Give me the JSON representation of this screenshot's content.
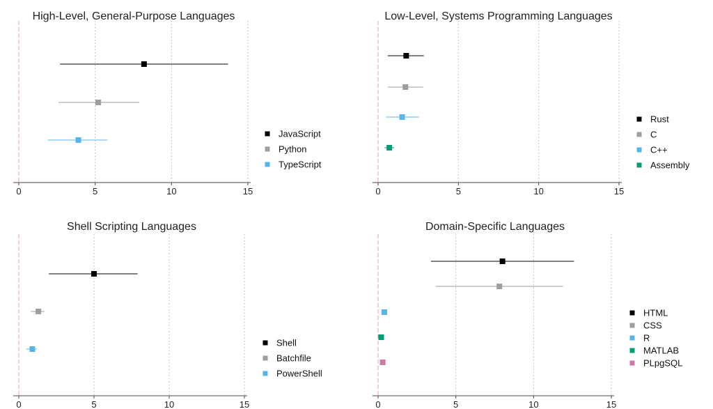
{
  "chart_data": [
    {
      "type": "scatter",
      "title": "High-Level, General-Purpose Languages",
      "xlabel": "",
      "ylabel": "",
      "xlim": [
        0,
        15
      ],
      "xticks": [
        "0",
        "5",
        "10",
        "15"
      ],
      "grid": "vertical dotted",
      "legend_position": "right",
      "series": [
        {
          "name": "JavaScript",
          "color": "#000000",
          "value": 8.2,
          "low": 2.7,
          "high": 13.7
        },
        {
          "name": "Python",
          "color": "#9e9e9e",
          "value": 5.2,
          "low": 2.6,
          "high": 7.9
        },
        {
          "name": "TypeScript",
          "color": "#56b4e9",
          "value": 3.9,
          "low": 1.9,
          "high": 5.8
        }
      ]
    },
    {
      "type": "scatter",
      "title": "Low-Level, Systems Programming Languages",
      "xlabel": "",
      "ylabel": "",
      "xlim": [
        0,
        15
      ],
      "xticks": [
        "0",
        "5",
        "10",
        "15"
      ],
      "grid": "vertical dotted",
      "legend_position": "right",
      "series": [
        {
          "name": "Rust",
          "color": "#000000",
          "value": 1.75,
          "low": 0.6,
          "high": 2.85
        },
        {
          "name": "C",
          "color": "#9e9e9e",
          "value": 1.7,
          "low": 0.6,
          "high": 2.8
        },
        {
          "name": "C++",
          "color": "#56b4e9",
          "value": 1.5,
          "low": 0.5,
          "high": 2.55
        },
        {
          "name": "Assembly",
          "color": "#009e73",
          "value": 0.7,
          "low": 0.4,
          "high": 1.0
        }
      ]
    },
    {
      "type": "scatter",
      "title": "Shell Scripting Languages",
      "xlabel": "",
      "ylabel": "",
      "xlim": [
        0,
        15
      ],
      "xticks": [
        "0",
        "5",
        "10",
        "15"
      ],
      "grid": "vertical dotted",
      "legend_position": "right",
      "series": [
        {
          "name": "Shell",
          "color": "#000000",
          "value": 5.0,
          "low": 2.0,
          "high": 7.9
        },
        {
          "name": "Batchfile",
          "color": "#9e9e9e",
          "value": 1.3,
          "low": 0.8,
          "high": 1.7
        },
        {
          "name": "PowerShell",
          "color": "#56b4e9",
          "value": 0.9,
          "low": 0.5,
          "high": 1.2
        }
      ]
    },
    {
      "type": "scatter",
      "title": "Domain-Specific Languages",
      "xlabel": "",
      "ylabel": "",
      "xlim": [
        0,
        15
      ],
      "xticks": [
        "0",
        "5",
        "10",
        "15"
      ],
      "grid": "vertical dotted",
      "legend_position": "right",
      "series": [
        {
          "name": "HTML",
          "color": "#000000",
          "value": 8.0,
          "low": 3.4,
          "high": 12.6
        },
        {
          "name": "CSS",
          "color": "#9e9e9e",
          "value": 7.8,
          "low": 3.7,
          "high": 11.9
        },
        {
          "name": "R",
          "color": "#56b4e9",
          "value": 0.4,
          "low": 0.25,
          "high": 0.6
        },
        {
          "name": "MATLAB",
          "color": "#009e73",
          "value": 0.2,
          "low": 0.1,
          "high": 0.3
        },
        {
          "name": "PLpgSQL",
          "color": "#cc79a7",
          "value": 0.3,
          "low": 0.2,
          "high": 0.4
        }
      ]
    }
  ]
}
